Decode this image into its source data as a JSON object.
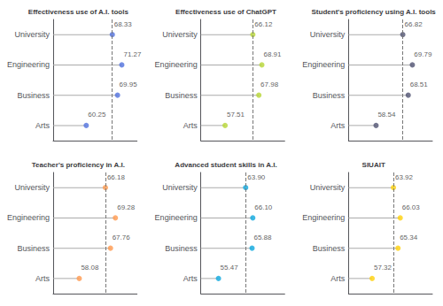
{
  "chart_data": [
    {
      "type": "lollipop",
      "orientation": "horizontal",
      "title": "Effectiveness use of A.I. tools",
      "categories": [
        "University",
        "Engineering",
        "Business",
        "Arts"
      ],
      "values": [
        68.33,
        71.27,
        69.95,
        60.25
      ],
      "value_labels": [
        "68.33",
        "71.27",
        "69.95",
        "60.25"
      ],
      "reference": 68.33,
      "xlim": [
        50,
        76
      ],
      "tick_labels": "y",
      "data_labels": true,
      "grid": false
    },
    {
      "type": "lollipop",
      "orientation": "horizontal",
      "title": "Effectiveness use of ChatGPT",
      "categories": [
        "University",
        "Engineering",
        "Business",
        "Arts"
      ],
      "values": [
        66.12,
        68.91,
        67.98,
        57.51
      ],
      "value_labels": [
        "66.12",
        "68.91",
        "67.98",
        "57.51"
      ],
      "reference": 66.12,
      "xlim": [
        50,
        76
      ],
      "tick_labels": "y",
      "data_labels": true,
      "grid": false
    },
    {
      "type": "lollipop",
      "orientation": "horizontal",
      "title": "Student's proficiency using A.I. tools",
      "categories": [
        "University",
        "Engineering",
        "Business",
        "Arts"
      ],
      "values": [
        66.82,
        69.79,
        68.51,
        58.54
      ],
      "value_labels": [
        "66.82",
        "69.79",
        "68.51",
        "58.54"
      ],
      "reference": 66.82,
      "xlim": [
        50,
        76
      ],
      "tick_labels": "y",
      "data_labels": true,
      "grid": false
    },
    {
      "type": "lollipop",
      "orientation": "horizontal",
      "title": "Teacher's proficiency in A.I.",
      "categories": [
        "University",
        "Engineering",
        "Business",
        "Arts"
      ],
      "values": [
        66.18,
        69.28,
        67.76,
        58.08
      ],
      "value_labels": [
        "66.18",
        "69.28",
        "67.76",
        "58.08"
      ],
      "reference": 66.18,
      "xlim": [
        50,
        76
      ],
      "tick_labels": "y",
      "data_labels": true,
      "grid": false
    },
    {
      "type": "lollipop",
      "orientation": "horizontal",
      "title": "Advanced student skills in A.I.",
      "categories": [
        "University",
        "Engineering",
        "Business",
        "Arts"
      ],
      "values": [
        63.9,
        66.1,
        65.88,
        55.47
      ],
      "value_labels": [
        "63.90",
        "66.10",
        "65.88",
        "55.47"
      ],
      "reference": 63.9,
      "xlim": [
        50,
        76
      ],
      "tick_labels": "y",
      "data_labels": true,
      "grid": false
    },
    {
      "type": "lollipop",
      "orientation": "horizontal",
      "title": "SIUAIT",
      "categories": [
        "University",
        "Engineering",
        "Business",
        "Arts"
      ],
      "values": [
        63.92,
        66.03,
        65.34,
        57.32
      ],
      "value_labels": [
        "63.92",
        "66.03",
        "65.34",
        "57.32"
      ],
      "reference": 63.92,
      "xlim": [
        50,
        76
      ],
      "tick_labels": "y",
      "data_labels": true,
      "grid": false
    }
  ]
}
